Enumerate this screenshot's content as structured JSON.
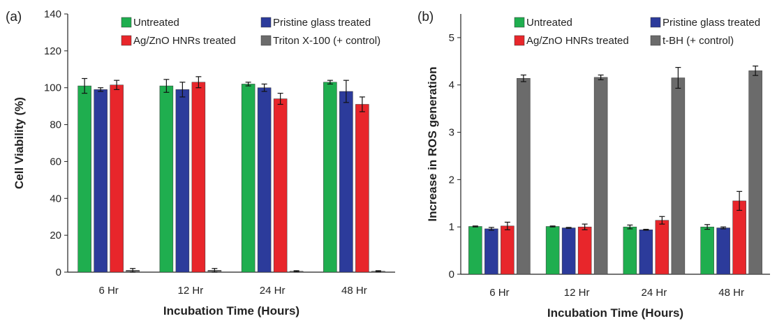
{
  "chart_data": [
    {
      "type": "bar",
      "panel_label": "(a)",
      "categories": [
        "6 Hr",
        "12 Hr",
        "24 Hr",
        "48 Hr"
      ],
      "xlabel": "Incubation Time (Hours)",
      "ylabel": "Cell Viability (%)",
      "ylim": [
        0,
        140
      ],
      "yticks": [
        0,
        20,
        40,
        60,
        80,
        100,
        120,
        140
      ],
      "legend_position": "top",
      "series": [
        {
          "name": "Untreated",
          "color": "#1fae4f",
          "values": [
            101,
            101,
            102,
            103
          ],
          "errors": [
            4,
            3.5,
            1,
            1
          ]
        },
        {
          "name": "Pristine glass treated",
          "color": "#2c3b9b",
          "values": [
            99,
            99,
            100,
            98
          ],
          "errors": [
            1,
            4,
            2,
            6
          ]
        },
        {
          "name": "Ag/ZnO HNRs treated",
          "color": "#e8262b",
          "values": [
            101.5,
            103,
            94,
            91
          ],
          "errors": [
            2.5,
            3,
            3,
            4
          ]
        },
        {
          "name": "Triton X-100 (+ control)",
          "color": "#6b6b6b",
          "values": [
            1,
            1,
            0.5,
            0.5
          ],
          "errors": [
            1,
            1,
            0.3,
            0.3
          ]
        }
      ]
    },
    {
      "type": "bar",
      "panel_label": "(b)",
      "categories": [
        "6 Hr",
        "12 Hr",
        "24 Hr",
        "48 Hr"
      ],
      "xlabel": "Incubation Time (Hours)",
      "ylabel": "Increase in ROS generation",
      "ylim": [
        0,
        5.5
      ],
      "yticks": [
        0,
        1,
        2,
        3,
        4,
        5
      ],
      "legend_position": "top",
      "series": [
        {
          "name": "Untreated",
          "color": "#1fae4f",
          "values": [
            1.01,
            1.01,
            1.0,
            1.0
          ],
          "errors": [
            0.01,
            0.01,
            0.04,
            0.05
          ]
        },
        {
          "name": "Pristine glass treated",
          "color": "#2c3b9b",
          "values": [
            0.96,
            0.98,
            0.94,
            0.98
          ],
          "errors": [
            0.03,
            0.01,
            0.01,
            0.02
          ]
        },
        {
          "name": "Ag/ZnO HNRs treated",
          "color": "#e8262b",
          "values": [
            1.02,
            1.0,
            1.14,
            1.55
          ],
          "errors": [
            0.08,
            0.06,
            0.08,
            0.2
          ]
        },
        {
          "name": "t-BH (+ control)",
          "color": "#6b6b6b",
          "values": [
            4.14,
            4.16,
            4.15,
            4.3
          ],
          "errors": [
            0.07,
            0.05,
            0.22,
            0.1
          ]
        }
      ]
    }
  ]
}
